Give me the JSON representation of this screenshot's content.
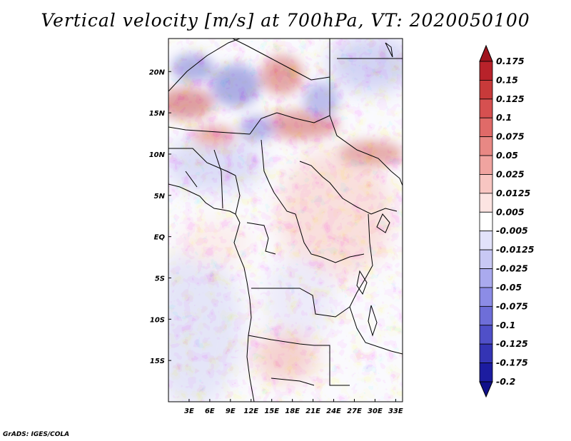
{
  "title": "Vertical velocity [m/s] at 700hPa, VT: 2020050100",
  "credit": "GrADS: IGES/COLA",
  "chart_data": {
    "type": "heatmap",
    "title": "Vertical velocity [m/s] at 700hPa, VT: 2020050100",
    "variable": "Vertical velocity",
    "units": "m/s",
    "level": "700hPa",
    "valid_time": "2020050100",
    "lon_range": [
      0,
      34
    ],
    "lat_range": [
      -20,
      24
    ],
    "x_ticks": [
      {
        "value": 3,
        "label": "3E"
      },
      {
        "value": 6,
        "label": "6E"
      },
      {
        "value": 9,
        "label": "9E"
      },
      {
        "value": 12,
        "label": "12E"
      },
      {
        "value": 15,
        "label": "15E"
      },
      {
        "value": 18,
        "label": "18E"
      },
      {
        "value": 21,
        "label": "21E"
      },
      {
        "value": 24,
        "label": "24E"
      },
      {
        "value": 27,
        "label": "27E"
      },
      {
        "value": 30,
        "label": "30E"
      },
      {
        "value": 33,
        "label": "33E"
      }
    ],
    "y_ticks": [
      {
        "value": 20,
        "label": "20N"
      },
      {
        "value": 15,
        "label": "15N"
      },
      {
        "value": 10,
        "label": "10N"
      },
      {
        "value": 5,
        "label": "5N"
      },
      {
        "value": 0,
        "label": "EQ"
      },
      {
        "value": -5,
        "label": "5S"
      },
      {
        "value": -10,
        "label": "10S"
      },
      {
        "value": -15,
        "label": "15S"
      }
    ],
    "colorbar": {
      "levels": [
        "0.175",
        "0.15",
        "0.125",
        "0.1",
        "0.075",
        "0.05",
        "0.025",
        "0.0125",
        "0.005",
        "-0.005",
        "-0.0125",
        "-0.025",
        "-0.05",
        "-0.075",
        "-0.1",
        "-0.125",
        "-0.175",
        "-0.2"
      ],
      "colors": [
        "#a0141e",
        "#b8222a",
        "#c83a3a",
        "#d65050",
        "#e06a68",
        "#e88884",
        "#f0a4a0",
        "#f8c6c2",
        "#fce4e2",
        "#ffffff",
        "#e2e2fa",
        "#c8c8f4",
        "#aaaaee",
        "#8c8ce6",
        "#6e6ed8",
        "#5050c8",
        "#3434b4",
        "#1c1ca0",
        "#10108a"
      ]
    },
    "field_summary": "Strong alternating rising/sinking cells over the Sahel 12N-20N; mostly weak sinking (blue) over the southeast Atlantic and southern Congo basin; weak rising (red) over central Africa and the Gulf of Guinea"
  }
}
